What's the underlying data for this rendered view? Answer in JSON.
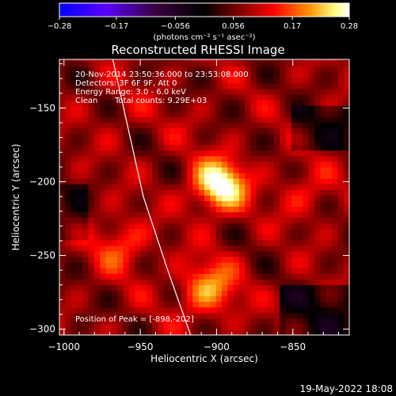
{
  "chart_data": {
    "type": "heatmap",
    "title": "Reconstructed RHESSI Image",
    "xlabel": "Heliocentric X (arcsec)",
    "ylabel": "Heliocentric Y (arcsec)",
    "xlim": [
      -1003,
      -813
    ],
    "ylim": [
      -304,
      -117
    ],
    "x_ticks": [
      -1000,
      -950,
      -900,
      -850
    ],
    "y_ticks": [
      -300,
      -250,
      -200,
      -150
    ],
    "x_tick_labels": [
      "−1000",
      "−950",
      "−900",
      "−850"
    ],
    "y_tick_labels": [
      "−300",
      "−250",
      "−200",
      "−150"
    ],
    "colorbar": {
      "range": [
        -0.28,
        0.28
      ],
      "ticks": [
        -0.28,
        -0.17,
        -0.056,
        0.056,
        0.17,
        0.28
      ],
      "tick_labels": [
        "−0.28",
        "−0.17",
        "−0.056",
        "0.056",
        "0.17",
        "0.28"
      ],
      "label": "(photons cm⁻² s⁻¹ asec⁻²)",
      "colors": [
        "#0000ff",
        "#5a00ff",
        "#3a0040",
        "#000000",
        "#800000",
        "#ff0000",
        "#ff9000",
        "#ffff80",
        "#ffffff"
      ]
    },
    "annotations": [
      "20-Nov-2014 23:50:36.000 to 23:53:08.000",
      "Detectors: 3F 6F 9F, Att 0",
      "Energy Range: 3.0 - 6.0 keV",
      "Clean",
      "Total counts: 9.29E+03"
    ],
    "peak_label": "Position of Peak = [-898,-202]",
    "peak": {
      "x": -898,
      "y": -202,
      "value": 0.28
    },
    "secondary_sources": [
      {
        "x": -905,
        "y": -272,
        "value": 0.19
      },
      {
        "x": -963,
        "y": -243,
        "value": 0.14
      },
      {
        "x": -843,
        "y": -208,
        "value": 0.11
      },
      {
        "x": -960,
        "y": -150,
        "value": 0.08
      },
      {
        "x": -920,
        "y": -165,
        "value": 0.07
      }
    ],
    "limb_curve": [
      [
        -968,
        -117
      ],
      [
        -948,
        -210
      ],
      [
        -932,
        -260
      ],
      [
        -917,
        -304
      ]
    ]
  },
  "footer": {
    "timestamp": "19-May-2022 18:08"
  }
}
